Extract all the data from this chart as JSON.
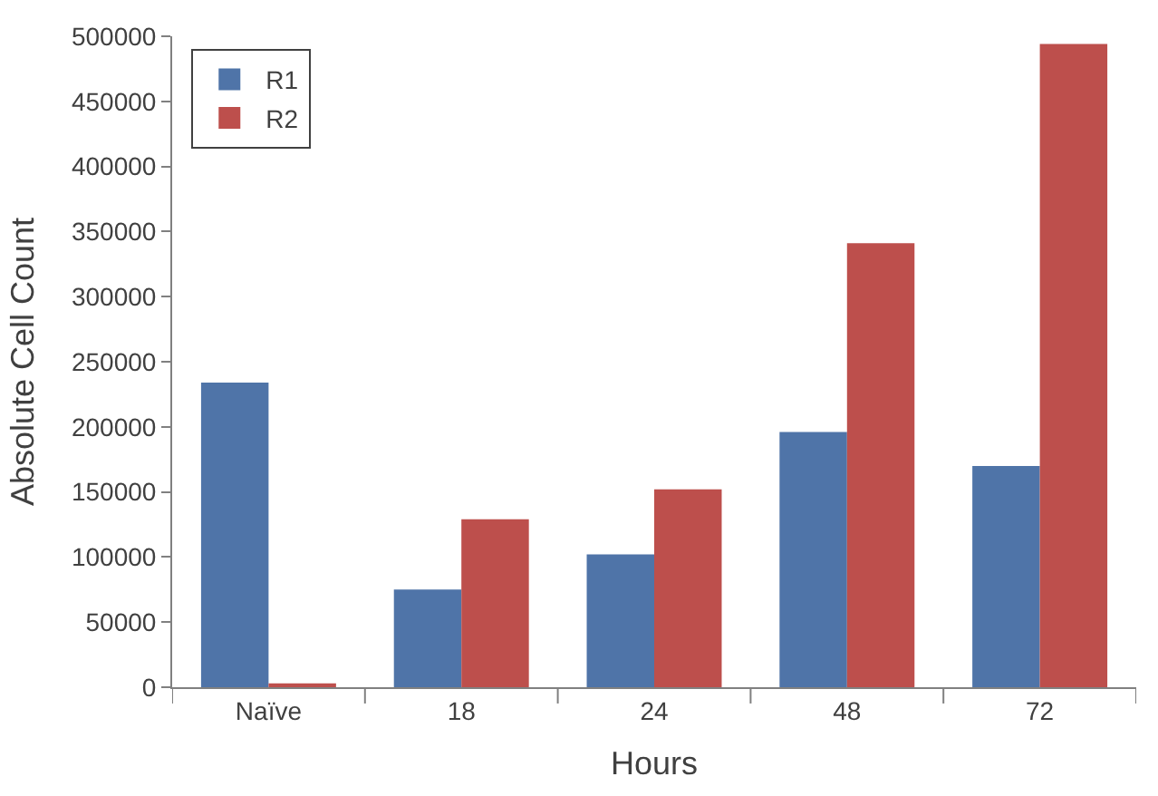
{
  "chart_data": {
    "type": "bar",
    "xlabel": "Hours",
    "ylabel": "Absolute Cell Count",
    "categories": [
      "Naïve",
      "18",
      "24",
      "48",
      "72"
    ],
    "series": [
      {
        "name": "R1",
        "color": "#4f74a8",
        "values": [
          234000,
          75000,
          102000,
          196000,
          170000
        ]
      },
      {
        "name": "R2",
        "color": "#bd4f4c",
        "values": [
          3000,
          129000,
          152000,
          341000,
          494000
        ]
      }
    ],
    "ylim": [
      0,
      500000
    ],
    "yticks": [
      0,
      50000,
      100000,
      150000,
      200000,
      250000,
      300000,
      350000,
      400000,
      450000,
      500000
    ],
    "legend": "top left"
  }
}
